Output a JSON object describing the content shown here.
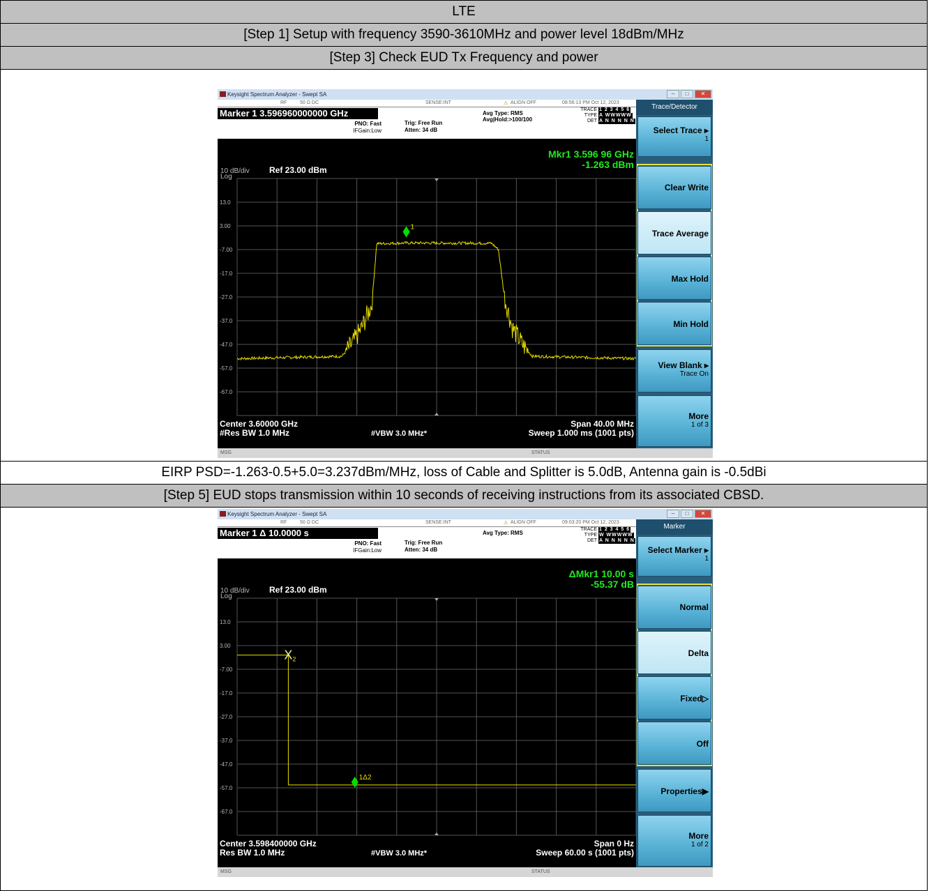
{
  "table": {
    "title": "LTE",
    "step1": "[Step 1] Setup with frequency 3590-3610MHz and power level 18dBm/MHz",
    "step3": "[Step 3] Check EUD Tx Frequency and power",
    "eirp_note": "EIRP PSD=-1.263-0.5+5.0=3.237dBm/MHz, loss of Cable and Splitter is 5.0dB, Antenna gain is -0.5dBi",
    "step5": "[Step 5] EUD stops transmission within 10 seconds of receiving instructions from its associated CBSD."
  },
  "sa1": {
    "window_title": "Keysight Spectrum Analyzer - Swept SA",
    "rf": "RF",
    "impedance": "50 Ω   DC",
    "sense": "SENSE:INT",
    "align": "ALIGN OFF",
    "time": "08:56:13 PM Oct 12, 2023",
    "marker_title": "Marker 1 3.596960000000 GHz",
    "pno": "PNO: Fast",
    "ifgain": "IFGain:Low",
    "trig": "Trig: Free Run",
    "atten": "Atten: 34 dB",
    "avg_type": "Avg Type: RMS",
    "avg_hold": "Avg|Hold:>100/100",
    "trace_label": "TRACE",
    "trace_val": "1 2 3 4 5 6",
    "type_label": "TYPE",
    "type_val": "A WWWWW",
    "det_label": "DET",
    "det_val": "A N N N N N",
    "scale": "10 dB/div",
    "log": "Log",
    "ref": "Ref 23.00 dBm",
    "mkr_readout_1": "Mkr1 3.596 96 GHz",
    "mkr_readout_2": "-1.263 dBm",
    "marker_label": "1",
    "center": "Center 3.60000 GHz",
    "res_bw": "#Res BW 1.0 MHz",
    "vbw": "#VBW 3.0 MHz*",
    "span": "Span 40.00 MHz",
    "sweep": "Sweep  1.000 ms (1001 pts)",
    "msg": "MSG",
    "status": "STATUS",
    "menu_title": "Trace/Detector",
    "softkeys": [
      {
        "label": "Select Trace",
        "sub": "1"
      },
      {
        "label": "Clear Write",
        "sub": ""
      },
      {
        "label": "Trace Average",
        "sub": ""
      },
      {
        "label": "Max Hold",
        "sub": ""
      },
      {
        "label": "Min Hold",
        "sub": ""
      },
      {
        "label": "View Blank",
        "sub": "Trace On"
      },
      {
        "label": "More",
        "sub": "1 of 3"
      }
    ],
    "colors": {
      "trace": "#e8e000",
      "marker": "#00e000",
      "grid": "#555555"
    }
  },
  "sa2": {
    "window_title": "Keysight Spectrum Analyzer - Swept SA",
    "rf": "RF",
    "impedance": "50 Ω   DC",
    "sense": "SENSE:INT",
    "align": "ALIGN OFF",
    "time": "09:03:20 PM Oct 12, 2023",
    "marker_title": "Marker 1 Δ 10.0000 s",
    "pno": "PNO: Fast",
    "ifgain": "IFGain:Low",
    "trig": "Trig: Free Run",
    "atten": "Atten: 34 dB",
    "avg_type": "Avg Type: RMS",
    "avg_hold": "",
    "trace_label": "TRACE",
    "trace_val": "1 2 3 4 5 6",
    "type_label": "TYPE",
    "type_val": "W WWWWW",
    "det_label": "DET",
    "det_val": "A N N N N N",
    "scale": "10 dB/div",
    "log": "Log",
    "ref": "Ref 23.00 dBm",
    "mkr_readout_1": "ΔMkr1 10.00 s",
    "mkr_readout_2": "-55.37 dB",
    "marker_label": "1Δ2",
    "ref_marker_label": "X",
    "ref_marker_sub": "2",
    "center": "Center 3.598400000 GHz",
    "res_bw": "Res BW 1.0 MHz",
    "vbw": "#VBW 3.0 MHz*",
    "span": "Span 0 Hz",
    "sweep": "Sweep  60.00 s (1001 pts)",
    "msg": "MSG",
    "status": "STATUS",
    "menu_title": "Marker",
    "softkeys": [
      {
        "label": "Select Marker",
        "sub": "1"
      },
      {
        "label": "Normal",
        "sub": ""
      },
      {
        "label": "Delta",
        "sub": ""
      },
      {
        "label": "Fixed▷",
        "sub": ""
      },
      {
        "label": "Off",
        "sub": ""
      },
      {
        "label": "Properties▶",
        "sub": ""
      },
      {
        "label": "More",
        "sub": "1 of 2"
      }
    ]
  },
  "y_ticks": [
    "13.0",
    "3.00",
    "-7.00",
    "-17.0",
    "-27.0",
    "-37.0",
    "-47.0",
    "-57.0",
    "-67.0"
  ],
  "chart_data": [
    {
      "type": "line",
      "title": "Marker 1 3.596960000000 GHz",
      "xlabel": "Center 3.60000 GHz / Span 40.00 MHz",
      "ylabel": "dBm",
      "x_unit": "GHz",
      "xlim": [
        3.58,
        3.62
      ],
      "ylim": [
        -77,
        23
      ],
      "series": [
        {
          "x": [
            3.58,
            3.5905,
            3.5915,
            3.5925,
            3.5935,
            3.594,
            3.597,
            3.6055,
            3.6062,
            3.6068,
            3.6076,
            3.6086,
            3.6096,
            3.62
          ],
          "y": [
            -53,
            -52,
            -47,
            -40,
            -30,
            -4.5,
            -4.2,
            -4.3,
            -7,
            -27,
            -40,
            -47,
            -52,
            -53
          ]
        }
      ],
      "markers": [
        {
          "name": "1",
          "x": 3.59696,
          "y": -1.263
        }
      ]
    },
    {
      "type": "line",
      "title": "Marker 1 Δ 10.0000 s",
      "xlabel": "Span 0 Hz / Sweep 60.00 s",
      "ylabel": "dBm",
      "x_unit": "s",
      "xlim": [
        0,
        60
      ],
      "ylim": [
        -77,
        23
      ],
      "series": [
        {
          "x": [
            0,
            7.0,
            7.7,
            7.7,
            60
          ],
          "y": [
            -1.0,
            -1.0,
            -1.0,
            -55.8,
            -55.8
          ]
        }
      ],
      "markers": [
        {
          "name": "2",
          "x": 7.7,
          "y": -1.0
        },
        {
          "name": "1Δ2",
          "x": 17.7,
          "y": -55.8
        }
      ]
    }
  ]
}
